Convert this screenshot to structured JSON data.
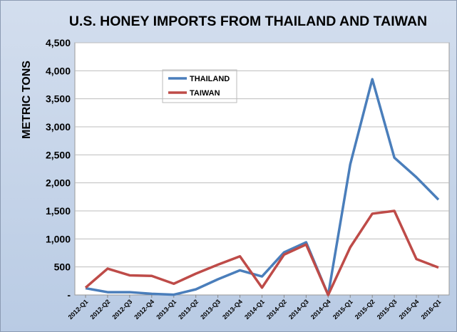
{
  "chart_data": {
    "type": "line",
    "title": "U.S. HONEY IMPORTS FROM THAILAND AND TAIWAN",
    "y_label": "METRIC TONS",
    "categories": [
      "2012-Q1",
      "2012-Q2",
      "2012-Q3",
      "2012-Q4",
      "2013-Q1",
      "2013-Q2",
      "2013-Q3",
      "2013-Q4",
      "2014-Q1",
      "2014-Q2",
      "2014-Q3",
      "2014-Q4",
      "2015-Q1",
      "2015-Q2",
      "2015-Q3",
      "2015-Q4",
      "2016-Q1"
    ],
    "series": [
      {
        "name": "THAILAND",
        "color": "#4a7ebb",
        "values": [
          120,
          50,
          50,
          20,
          5,
          100,
          280,
          440,
          330,
          760,
          940,
          0,
          2330,
          3850,
          2450,
          2100,
          1700
        ]
      },
      {
        "name": "TAIWAN",
        "color": "#be4b48",
        "values": [
          130,
          470,
          350,
          340,
          200,
          380,
          540,
          690,
          130,
          720,
          900,
          0,
          850,
          1450,
          1500,
          640,
          490
        ]
      }
    ],
    "ylim": [
      0,
      4500
    ],
    "yticks": [
      {
        "value": 0,
        "label": "-"
      },
      500,
      {
        "value": 1000,
        "label": "1,000"
      },
      {
        "value": 1500,
        "label": "1,500"
      },
      {
        "value": 2000,
        "label": "2,000"
      },
      {
        "value": 2500,
        "label": "2,500"
      },
      {
        "value": 3000,
        "label": "3,000"
      },
      {
        "value": 3500,
        "label": "3,500"
      },
      {
        "value": 4000,
        "label": "4,000"
      },
      {
        "value": 4500,
        "label": "4,500"
      }
    ],
    "grid": true,
    "legend": "upper left"
  }
}
